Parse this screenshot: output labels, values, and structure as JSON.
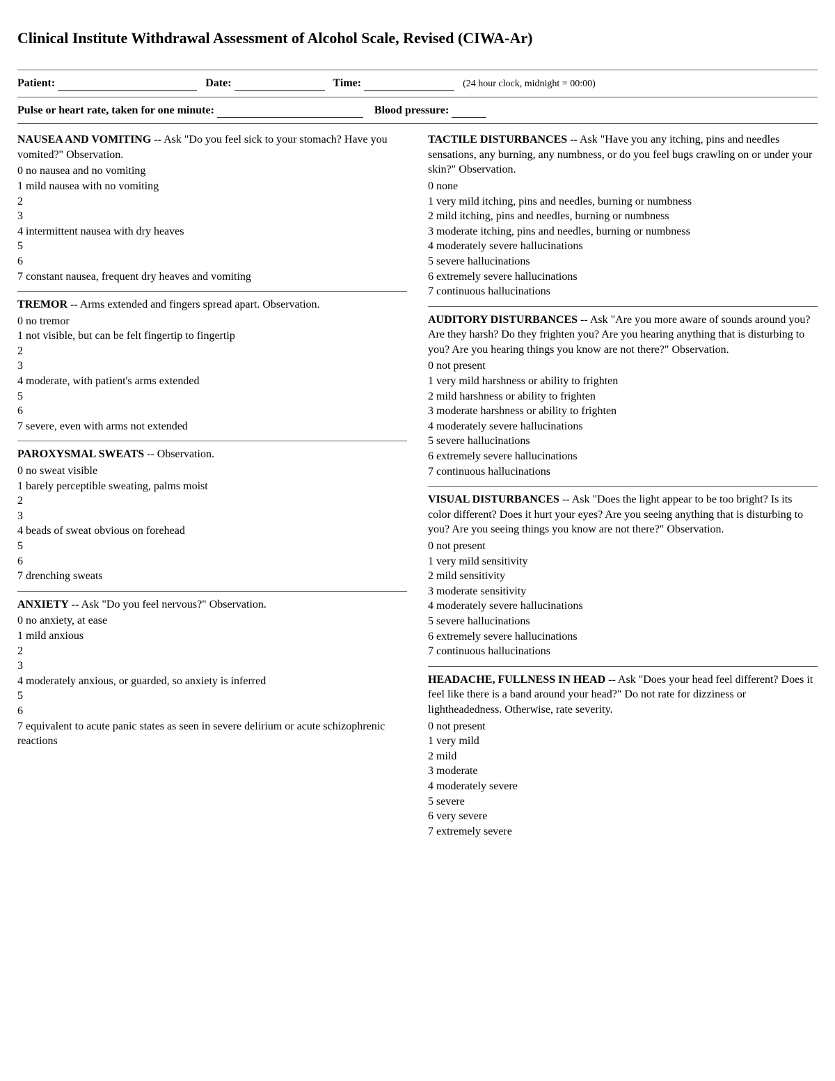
{
  "title": "Clinical Institute Withdrawal Assessment of Alcohol Scale, Revised (CIWA-Ar)",
  "header": {
    "patient_label": "Patient:",
    "date_label": "Date:",
    "time_label": "Time:",
    "time_note": "(24 hour clock, midnight = 00:00)",
    "pulse_label": "Pulse or heart rate, taken for one minute:",
    "bp_label": "Blood pressure:",
    "blank_widths": {
      "patient": 200,
      "date": 130,
      "time": 130,
      "pulse": 210,
      "bp": 50
    }
  },
  "left_sections": [
    {
      "heading": "NAUSEA AND VOMITING",
      "prompt": " -- Ask \"Do you feel sick to your stomach? Have you vomited?\" Observation.",
      "scale": [
        "0 no nausea and no vomiting",
        "1 mild nausea with no vomiting",
        "2",
        "3",
        "4 intermittent nausea with dry heaves",
        "5",
        "6",
        "7 constant nausea, frequent dry heaves and vomiting"
      ]
    },
    {
      "heading": "TREMOR",
      "prompt": " -- Arms extended and fingers spread apart. Observation.",
      "scale": [
        "0 no tremor",
        "1 not visible, but can be felt fingertip to fingertip",
        "2",
        "3",
        "4 moderate, with patient's arms extended",
        "5",
        "6",
        "7 severe, even with arms not extended"
      ]
    },
    {
      "heading": "PAROXYSMAL SWEATS",
      "prompt": " -- Observation.",
      "scale": [
        "0 no sweat visible",
        "1 barely perceptible sweating, palms moist",
        "2",
        "3",
        "4 beads of sweat obvious on forehead",
        "5",
        "6",
        "7 drenching sweats"
      ]
    },
    {
      "heading": "ANXIETY",
      "prompt": " -- Ask \"Do you feel nervous?\" Observation.",
      "scale": [
        "0 no anxiety, at ease",
        "1 mild anxious",
        "2",
        "3",
        "4 moderately anxious, or guarded, so anxiety is inferred",
        "5",
        "6",
        "7 equivalent to acute panic states as seen in severe delirium or acute schizophrenic reactions"
      ]
    }
  ],
  "right_sections": [
    {
      "heading": "TACTILE DISTURBANCES",
      "prompt": " -- Ask \"Have you any itching, pins and needles sensations, any burning, any numbness, or do you feel bugs crawling on or under your skin?\" Observation.",
      "scale": [
        "0 none",
        "1 very mild itching, pins and needles, burning or numbness",
        "2 mild itching, pins and needles, burning or numbness",
        "3 moderate itching, pins and needles, burning or numbness",
        "4 moderately severe hallucinations",
        "5 severe hallucinations",
        "6 extremely severe hallucinations",
        "7 continuous hallucinations"
      ]
    },
    {
      "heading": "AUDITORY DISTURBANCES",
      "prompt": " -- Ask \"Are you more aware of sounds around you? Are they harsh? Do they frighten you? Are you hearing anything that is disturbing to you? Are you hearing things you know are not there?\" Observation.",
      "scale": [
        "0 not present",
        "1 very mild harshness or ability to frighten",
        "2 mild harshness or ability to frighten",
        "3 moderate harshness or ability to frighten",
        "4 moderately severe hallucinations",
        "5 severe hallucinations",
        "6 extremely severe hallucinations",
        "7 continuous hallucinations"
      ]
    },
    {
      "heading": "VISUAL DISTURBANCES",
      "prompt": " -- Ask \"Does the light appear to be too bright? Is its color different? Does it hurt your eyes? Are you seeing anything that is disturbing to you? Are you seeing things you know are not there?\" Observation.",
      "scale": [
        "0 not present",
        "1 very mild sensitivity",
        "2 mild sensitivity",
        "3 moderate sensitivity",
        "4 moderately severe hallucinations",
        "5 severe hallucinations",
        "6 extremely severe hallucinations",
        "7 continuous hallucinations"
      ]
    },
    {
      "heading": "HEADACHE, FULLNESS IN HEAD",
      "prompt": " -- Ask \"Does your head feel different? Does it feel like there is a band around your head?\" Do not rate for dizziness or lightheadedness. Otherwise, rate severity.",
      "scale": [
        "0 not present",
        "1 very mild",
        "2 mild",
        "3 moderate",
        "4 moderately severe",
        "5 severe",
        "6 very severe",
        "7 extremely severe"
      ]
    }
  ]
}
